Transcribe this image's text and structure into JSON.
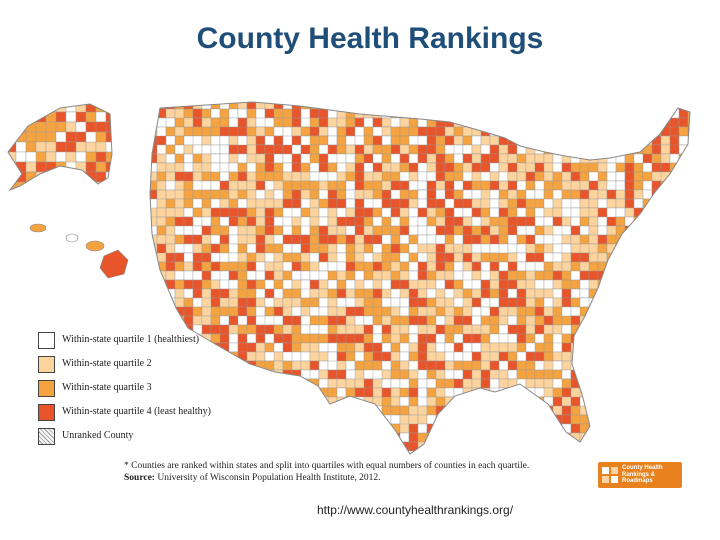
{
  "title": "County Health Rankings",
  "colors": {
    "quartile_1": "#ffffff",
    "quartile_2": "#fdd49e",
    "quartile_3": "#f4a340",
    "quartile_4": "#e8552a",
    "unranked": "#f2f2f2",
    "border": "#9a9a9a",
    "title": "#1f4e79"
  },
  "legend": [
    {
      "label": "Within-state quartile 1 (healthiest)",
      "color_key": "quartile_1",
      "hatched": false
    },
    {
      "label": "Within-state quartile 2",
      "color_key": "quartile_2",
      "hatched": false
    },
    {
      "label": "Within-state quartile 3",
      "color_key": "quartile_3",
      "hatched": false
    },
    {
      "label": "Within-state quartile 4 (least healthy)",
      "color_key": "quartile_4",
      "hatched": false
    },
    {
      "label": "Unranked County",
      "color_key": "unranked",
      "hatched": true
    }
  ],
  "footnote": {
    "note": "* Counties are ranked within states and split into quartiles with equal numbers of counties in each quartile.",
    "source_label": "Source:",
    "source_text": "University of Wisconsin Population Health Institute, 2012."
  },
  "logo": {
    "text": "County Health Rankings & Roadmaps",
    "icon": "county-health-logo-icon"
  },
  "url": "http://www.countyhealthrankings.org/"
}
